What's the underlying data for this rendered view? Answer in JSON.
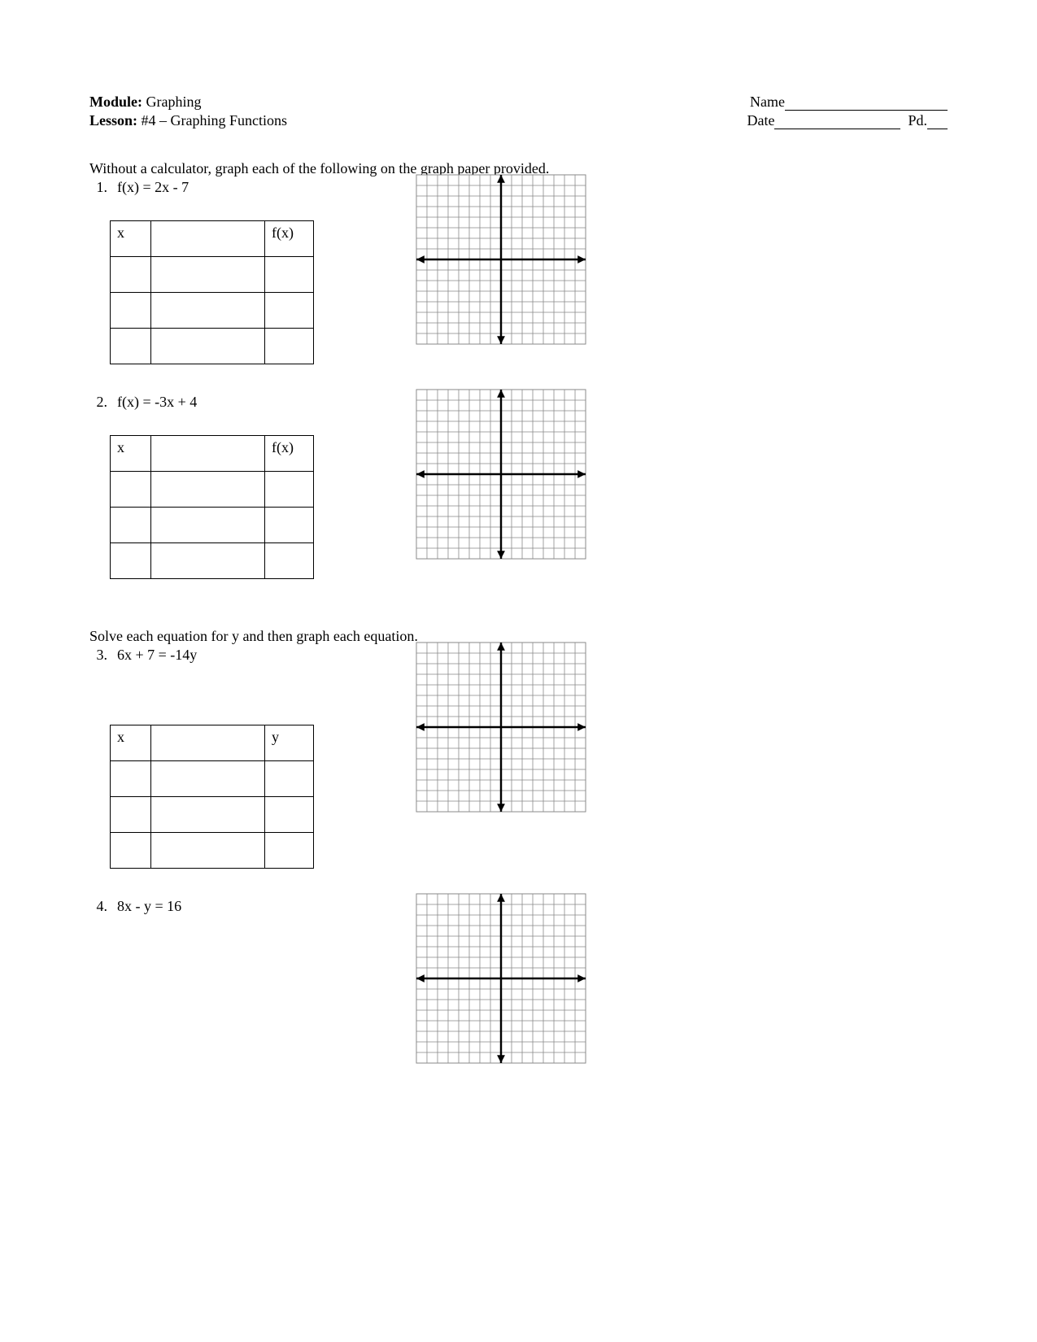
{
  "header": {
    "module_label": "Module:",
    "module_value": "Graphing",
    "lesson_label": "Lesson:",
    "lesson_value": "#4 – Graphing Functions",
    "name_label": "Name",
    "date_label": "Date",
    "pd_label": "Pd."
  },
  "instructions1": "Without a calculator, graph each of the following on the graph paper provided.",
  "instructions2": "Solve each equation for y and then graph each equation.",
  "problems": {
    "p1": {
      "num": "1.",
      "equation": "f(x) = 2x - 7",
      "col1": "x",
      "col2": "f(x)"
    },
    "p2": {
      "num": "2.",
      "equation": "f(x) = -3x + 4",
      "col1": "x",
      "col2": "f(x)"
    },
    "p3": {
      "num": "3.",
      "equation": "6x + 7 = -14y",
      "col1": "x",
      "col2": "y"
    },
    "p4": {
      "num": "4.",
      "equation": "8x - y = 16"
    }
  },
  "grid": {
    "size": 212,
    "cells": 16,
    "cell_size": 13.25,
    "line_color": "#888888",
    "axis_color": "#000000",
    "background": "#ffffff",
    "axis_thickness": 2.5,
    "arrow_size": 5
  }
}
